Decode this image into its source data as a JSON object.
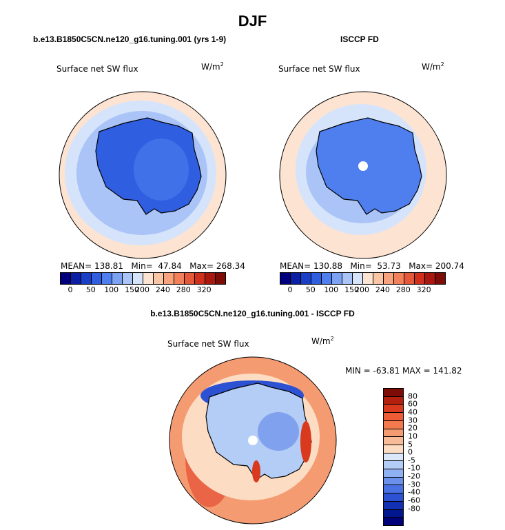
{
  "figure": {
    "season_title": "DJF"
  },
  "panels": [
    {
      "title": "b.e13.B1850C5CN.ne120_g16.tuning.001 (yrs 1-9)",
      "variable": "Surface net SW flux",
      "units": "W/m",
      "units_exponent": "2",
      "stats": "MEAN= 138.81   Min=  47.84   Max= 268.34"
    },
    {
      "title": "ISCCP FD",
      "variable": "Surface net SW flux",
      "units": "W/m",
      "units_exponent": "2",
      "stats": "MEAN= 130.88   Min=  53.73   Max= 200.74"
    },
    {
      "title": "b.e13.B1850C5CN.ne120_g16.tuning.001 - ISCCP FD",
      "variable": "Surface net SW flux",
      "units": "W/m",
      "units_exponent": "2",
      "stats": "MIN = -63.81 MAX = 141.82"
    }
  ],
  "colorbars": {
    "abs": {
      "colors": [
        "#00007f",
        "#0b1fa5",
        "#1a3fc6",
        "#2f5ee0",
        "#4f7eee",
        "#7da2f3",
        "#aac4f7",
        "#d6e4fb",
        "#fde3d2",
        "#fbc6a6",
        "#f8a37d",
        "#f2805a",
        "#e6583a",
        "#d02f1c",
        "#a9180e",
        "#7d0b06"
      ],
      "ticks": [
        "0",
        "50",
        "100",
        "150",
        "200",
        "240",
        "280",
        "320"
      ]
    },
    "diff": {
      "colors": [
        "#7d0b06",
        "#b3200e",
        "#d9391c",
        "#ee5b34",
        "#f27a4e",
        "#f59b72",
        "#f8bb98",
        "#fcdcc2",
        "#dbe8fa",
        "#b4cdf6",
        "#8fb0f1",
        "#6a90eb",
        "#4a71e3",
        "#2c52d3",
        "#1330b4",
        "#021690",
        "#00007a"
      ],
      "ticks": [
        "80",
        "60",
        "40",
        "30",
        "20",
        "10",
        "5",
        "0",
        "-5",
        "-10",
        "-20",
        "-30",
        "-40",
        "-60",
        "-80"
      ]
    }
  },
  "map_colors": {
    "ocean_warm": "#fde3d2",
    "ocean_cool": "#d6e4fb",
    "ice_light": "#aac4f7",
    "ice_mid": "#4f7eee",
    "ice_dark": "#2f5ee0",
    "diff_pos_strong": "#e6583a",
    "diff_pos": "#f59b72",
    "diff_neg": "#8fb0f1",
    "diff_neg_strong": "#2c52d3"
  }
}
